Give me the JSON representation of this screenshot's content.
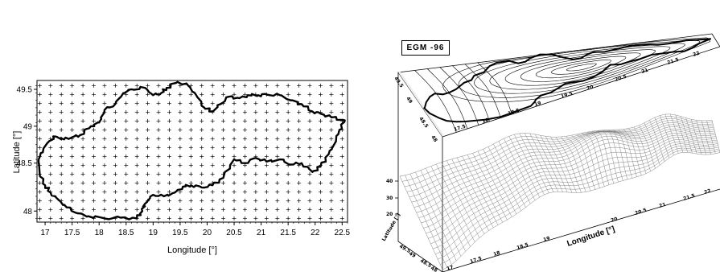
{
  "chart_data": [
    {
      "type": "scatter",
      "description_text": "",
      "xlabel": "Longitude [°]",
      "ylabel": "Latitude [°]",
      "xlim": [
        16.85,
        22.6
      ],
      "ylim": [
        47.7,
        49.62
      ],
      "x_ticks": [
        "17",
        "17.5",
        "18",
        "18.5",
        "19",
        "19.5",
        "20",
        "20.5",
        "21",
        "21.5",
        "22",
        "22.5"
      ],
      "y_ticks": [
        "49.5",
        "49",
        "48.5",
        "48"
      ],
      "y_tick_labels": [
        "49.5",
        "49",
        "48.5",
        "48"
      ],
      "grid_points": {
        "lon_start": 16.9,
        "lon_end": 22.5,
        "lon_step": 0.2,
        "lat_start": 47.75,
        "lat_end": 49.55,
        "lat_step": 0.12
      },
      "boundary": [
        [
          16.88,
          48.55
        ],
        [
          16.97,
          48.7
        ],
        [
          17.08,
          48.8
        ],
        [
          17.2,
          48.86
        ],
        [
          17.35,
          48.82
        ],
        [
          17.5,
          48.85
        ],
        [
          17.65,
          48.88
        ],
        [
          17.85,
          49.0
        ],
        [
          18.0,
          49.05
        ],
        [
          18.1,
          49.22
        ],
        [
          18.3,
          49.3
        ],
        [
          18.45,
          49.45
        ],
        [
          18.6,
          49.5
        ],
        [
          18.85,
          49.52
        ],
        [
          19.0,
          49.42
        ],
        [
          19.15,
          49.45
        ],
        [
          19.25,
          49.52
        ],
        [
          19.45,
          49.6
        ],
        [
          19.65,
          49.55
        ],
        [
          19.8,
          49.42
        ],
        [
          19.95,
          49.25
        ],
        [
          20.1,
          49.2
        ],
        [
          20.25,
          49.3
        ],
        [
          20.4,
          49.4
        ],
        [
          20.6,
          49.38
        ],
        [
          20.75,
          49.42
        ],
        [
          20.95,
          49.42
        ],
        [
          21.1,
          49.43
        ],
        [
          21.35,
          49.42
        ],
        [
          21.55,
          49.35
        ],
        [
          21.75,
          49.3
        ],
        [
          21.95,
          49.2
        ],
        [
          22.1,
          49.17
        ],
        [
          22.3,
          49.12
        ],
        [
          22.55,
          49.08
        ],
        [
          22.45,
          48.95
        ],
        [
          22.35,
          48.75
        ],
        [
          22.25,
          48.62
        ],
        [
          22.1,
          48.45
        ],
        [
          21.95,
          48.38
        ],
        [
          21.75,
          48.5
        ],
        [
          21.55,
          48.48
        ],
        [
          21.35,
          48.55
        ],
        [
          21.1,
          48.52
        ],
        [
          20.9,
          48.57
        ],
        [
          20.7,
          48.5
        ],
        [
          20.5,
          48.55
        ],
        [
          20.3,
          48.3
        ],
        [
          20.1,
          48.2
        ],
        [
          19.9,
          48.17
        ],
        [
          19.7,
          48.2
        ],
        [
          19.55,
          48.18
        ],
        [
          19.4,
          48.1
        ],
        [
          19.2,
          48.05
        ],
        [
          19.0,
          48.07
        ],
        [
          18.85,
          47.95
        ],
        [
          18.8,
          47.85
        ],
        [
          18.7,
          47.75
        ],
        [
          18.4,
          47.76
        ],
        [
          18.1,
          47.75
        ],
        [
          17.8,
          47.78
        ],
        [
          17.6,
          47.82
        ],
        [
          17.4,
          47.9
        ],
        [
          17.25,
          48.0
        ],
        [
          17.1,
          48.1
        ],
        [
          17.0,
          48.2
        ],
        [
          16.9,
          48.35
        ],
        [
          16.88,
          48.55
        ]
      ]
    }
  ],
  "inset": {
    "title": "EGM -96",
    "z_ticks": [
      "40",
      "30",
      "20"
    ],
    "lon_label": "Longitude [°]",
    "lat_label": "Latitude [°]",
    "lon_ticks": [
      "17.5",
      "18",
      "18.5",
      "19",
      "19.5",
      "20",
      "20.5",
      "21",
      "21.5",
      "22"
    ],
    "lat_ticks": [
      "48",
      "48.5",
      "49",
      "49.5"
    ],
    "surface_lon_ticks": [
      "17",
      "17.5",
      "18",
      "18.5",
      "19",
      "19.5",
      "20",
      "20.5",
      "21",
      "21.5",
      "22"
    ],
    "surface_lat_ticks": [
      "48",
      "48.5",
      "49",
      "49.5"
    ]
  }
}
